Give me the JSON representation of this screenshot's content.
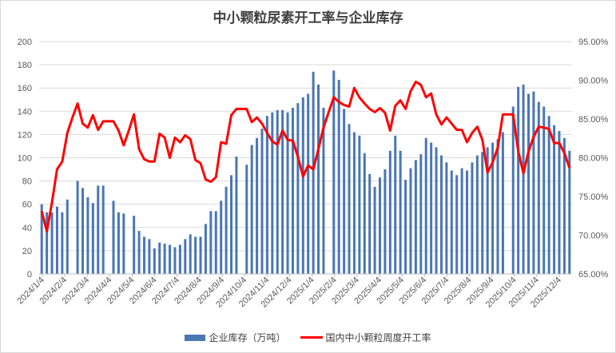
{
  "chart_data": {
    "type": "bar+line",
    "title": "中小颗粒尿素开工率与企业库存",
    "x_tick_labels": [
      "2024/1/4",
      "2024/2/4",
      "2024/3/4",
      "2024/4/4",
      "2024/5/4",
      "2024/6/4",
      "2024/7/4",
      "2024/8/4",
      "2024/9/4",
      "2024/10/4",
      "2024/11/4",
      "2024/12/4",
      "2025/1/4",
      "2025/2/4",
      "2025/3/4",
      "2025/4/4",
      "2025/5/4",
      "2025/6/4",
      "2025/7/4",
      "2025/8/4",
      "2025/9/4",
      "2025/10/4",
      "2025/11/4",
      "2025/12/4"
    ],
    "left_axis": {
      "min": 0,
      "max": 200,
      "step": 20,
      "ticks": [
        "0",
        "20",
        "40",
        "60",
        "80",
        "100",
        "120",
        "140",
        "160",
        "180",
        "200"
      ]
    },
    "right_axis": {
      "min": 65,
      "max": 95,
      "step": 5,
      "ticks": [
        "65.00%",
        "70.00%",
        "75.00%",
        "80.00%",
        "85.00%",
        "90.00%",
        "95.00%"
      ]
    },
    "grid": true,
    "legend_position": "bottom",
    "series": [
      {
        "name": "企业库存（万吨）",
        "type": "bar",
        "axis": "left",
        "color": "#4a76b4",
        "values": [
          60,
          53,
          53,
          58,
          53,
          64,
          null,
          80,
          74,
          66,
          61,
          76,
          76,
          null,
          63,
          53,
          52,
          null,
          50,
          37,
          32,
          30,
          22,
          27,
          26,
          25,
          23,
          25,
          30,
          34,
          32,
          32,
          43,
          54,
          54,
          63,
          75,
          85,
          101,
          null,
          94,
          111,
          117,
          125,
          136,
          139,
          141,
          141,
          139,
          143,
          147,
          152,
          155,
          174,
          163,
          143,
          null,
          175,
          167,
          142,
          129,
          122,
          119,
          104,
          86,
          75,
          83,
          90,
          106,
          119,
          106,
          81,
          91,
          98,
          103,
          117,
          113,
          109,
          102,
          96,
          89,
          85,
          91,
          89,
          96,
          102,
          105,
          109,
          113,
          116,
          122,
          null,
          144,
          161,
          163,
          155,
          157,
          148,
          144,
          136,
          128,
          123,
          117,
          106
        ]
      },
      {
        "name": "国内中小颗粒周度开工率",
        "type": "line",
        "axis": "right",
        "color": "#ff0000",
        "values": [
          73.1,
          70.5,
          74.2,
          78.5,
          79.5,
          83.2,
          85.2,
          87.0,
          84.4,
          83.9,
          85.5,
          83.6,
          84.7,
          84.7,
          84.7,
          83.5,
          81.6,
          83.5,
          85.6,
          81.1,
          79.8,
          79.5,
          79.5,
          83.1,
          82.6,
          80.0,
          82.6,
          82.0,
          82.9,
          82.4,
          79.7,
          79.3,
          77.2,
          76.9,
          77.5,
          82.0,
          81.8,
          85.5,
          86.3,
          86.3,
          86.3,
          84.6,
          85.2,
          84.4,
          83.2,
          82.1,
          81.7,
          83.5,
          82.3,
          82.2,
          80.1,
          77.6,
          79.0,
          78.5,
          81.1,
          83.9,
          85.9,
          87.8,
          87.2,
          86.8,
          86.6,
          89.0,
          87.8,
          87.0,
          86.3,
          85.9,
          86.4,
          85.8,
          83.5,
          86.7,
          87.4,
          86.3,
          88.6,
          89.8,
          89.4,
          87.8,
          88.3,
          85.6,
          84.3,
          85.2,
          84.4,
          83.6,
          83.6,
          82.0,
          83.2,
          84.0,
          82.3,
          78.1,
          79.4,
          81.3,
          85.6,
          85.6,
          85.6,
          80.8,
          78.0,
          80.8,
          82.7,
          84.0,
          83.9,
          83.7,
          81.9,
          81.9,
          80.6,
          78.7
        ]
      }
    ]
  }
}
